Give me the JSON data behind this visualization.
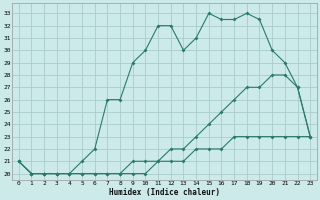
{
  "xlabel": "Humidex (Indice chaleur)",
  "bg_color": "#cceaea",
  "grid_color": "#aacccc",
  "line_color": "#2a7a6a",
  "xlim": [
    -0.5,
    23.5
  ],
  "ylim": [
    19.5,
    33.8
  ],
  "xticks": [
    0,
    1,
    2,
    3,
    4,
    5,
    6,
    7,
    8,
    9,
    10,
    11,
    12,
    13,
    14,
    15,
    16,
    17,
    18,
    19,
    20,
    21,
    22,
    23
  ],
  "yticks": [
    20,
    21,
    22,
    23,
    24,
    25,
    26,
    27,
    28,
    29,
    30,
    31,
    32,
    33
  ],
  "series1_x": [
    0,
    1,
    2,
    3,
    4,
    5,
    6,
    7,
    8,
    9,
    10,
    11,
    12,
    13,
    14,
    15,
    16,
    17,
    18,
    19,
    20,
    21,
    22,
    23
  ],
  "series1_y": [
    21,
    20,
    20,
    20,
    20,
    20,
    20,
    20,
    20,
    20,
    20,
    21,
    21,
    21,
    22,
    22,
    22,
    23,
    23,
    23,
    23,
    23,
    23,
    23
  ],
  "series2_x": [
    0,
    1,
    2,
    3,
    4,
    5,
    6,
    7,
    8,
    9,
    10,
    11,
    12,
    13,
    14,
    15,
    16,
    17,
    18,
    19,
    20,
    21,
    22,
    23
  ],
  "series2_y": [
    21,
    20,
    20,
    20,
    20,
    20,
    20,
    20,
    20,
    21,
    21,
    21,
    22,
    22,
    23,
    24,
    25,
    26,
    27,
    27,
    28,
    28,
    27,
    23
  ],
  "series3_x": [
    0,
    1,
    2,
    3,
    4,
    5,
    6,
    7,
    8,
    9,
    10,
    11,
    12,
    13,
    14,
    15,
    16,
    17,
    18,
    19,
    20,
    21,
    22,
    23
  ],
  "series3_y": [
    21,
    20,
    20,
    20,
    20,
    21,
    22,
    26,
    26,
    29,
    30,
    32,
    32,
    30,
    31,
    33,
    32.5,
    32.5,
    33,
    32.5,
    30,
    29,
    27,
    23
  ]
}
